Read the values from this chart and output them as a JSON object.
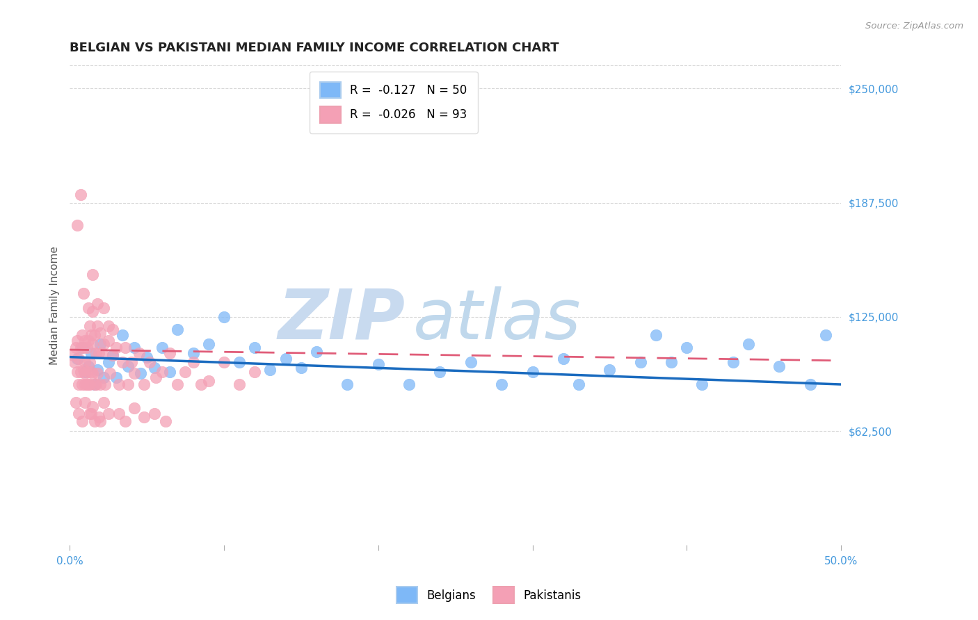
{
  "title": "BELGIAN VS PAKISTANI MEDIAN FAMILY INCOME CORRELATION CHART",
  "source_text": "Source: ZipAtlas.com",
  "ylabel": "Median Family Income",
  "xlim": [
    0.0,
    0.5
  ],
  "ylim": [
    0,
    262500
  ],
  "xticks": [
    0.0,
    0.1,
    0.2,
    0.3,
    0.4,
    0.5
  ],
  "xticklabels": [
    "0.0%",
    "",
    "",
    "",
    "",
    "50.0%"
  ],
  "yticks": [
    0,
    62500,
    125000,
    187500,
    250000
  ],
  "yticklabels": [
    "",
    "$62,500",
    "$125,000",
    "$187,500",
    "$250,000"
  ],
  "belgian_color": "#7eb8f7",
  "pakistani_color": "#f4a0b5",
  "belgian_line_color": "#1a6bbf",
  "pakistani_line_color": "#e05c78",
  "grid_color": "#cccccc",
  "background_color": "#ffffff",
  "watermark_zip": "ZIP",
  "watermark_atlas": "atlas",
  "watermark_color_zip": "#c8daef",
  "watermark_color_atlas": "#c0d8ec",
  "legend_R1": "R =  -0.127",
  "legend_N1": "N = 50",
  "legend_R2": "R =  -0.026",
  "legend_N2": "N = 93",
  "belgian_label": "Belgians",
  "pakistani_label": "Pakistanis",
  "title_fontsize": 13,
  "axis_label_fontsize": 11,
  "tick_fontsize": 11,
  "legend_fontsize": 12,
  "belgian_line_x0": 0.0,
  "belgian_line_y0": 103000,
  "belgian_line_x1": 0.5,
  "belgian_line_y1": 88000,
  "pakistani_line_x0": 0.0,
  "pakistani_line_y0": 107000,
  "pakistani_line_x1": 0.5,
  "pakistani_line_y1": 101000,
  "belgian_points_x": [
    0.005,
    0.008,
    0.01,
    0.012,
    0.014,
    0.016,
    0.018,
    0.02,
    0.022,
    0.025,
    0.028,
    0.03,
    0.034,
    0.038,
    0.042,
    0.046,
    0.05,
    0.055,
    0.06,
    0.065,
    0.07,
    0.08,
    0.09,
    0.1,
    0.11,
    0.12,
    0.13,
    0.14,
    0.15,
    0.16,
    0.18,
    0.2,
    0.22,
    0.24,
    0.26,
    0.28,
    0.3,
    0.32,
    0.33,
    0.35,
    0.37,
    0.38,
    0.39,
    0.4,
    0.41,
    0.43,
    0.44,
    0.46,
    0.48,
    0.49
  ],
  "belgian_points_y": [
    102000,
    108000,
    95000,
    98000,
    105000,
    88000,
    96000,
    110000,
    92000,
    100000,
    104000,
    92000,
    115000,
    98000,
    108000,
    94000,
    103000,
    97000,
    108000,
    95000,
    118000,
    105000,
    110000,
    125000,
    100000,
    108000,
    96000,
    102000,
    97000,
    106000,
    88000,
    99000,
    88000,
    95000,
    100000,
    88000,
    95000,
    102000,
    88000,
    96000,
    100000,
    115000,
    100000,
    108000,
    88000,
    100000,
    110000,
    98000,
    88000,
    115000
  ],
  "pakistani_points_x": [
    0.002,
    0.003,
    0.004,
    0.005,
    0.005,
    0.006,
    0.006,
    0.007,
    0.007,
    0.008,
    0.008,
    0.009,
    0.009,
    0.01,
    0.01,
    0.01,
    0.01,
    0.011,
    0.011,
    0.012,
    0.012,
    0.013,
    0.013,
    0.013,
    0.014,
    0.014,
    0.015,
    0.015,
    0.015,
    0.016,
    0.016,
    0.017,
    0.017,
    0.018,
    0.018,
    0.019,
    0.02,
    0.02,
    0.021,
    0.022,
    0.023,
    0.025,
    0.026,
    0.028,
    0.03,
    0.032,
    0.034,
    0.036,
    0.038,
    0.04,
    0.042,
    0.045,
    0.048,
    0.052,
    0.056,
    0.06,
    0.065,
    0.07,
    0.075,
    0.08,
    0.085,
    0.09,
    0.1,
    0.11,
    0.12,
    0.005,
    0.007,
    0.009,
    0.012,
    0.015,
    0.018,
    0.022,
    0.025,
    0.028,
    0.032,
    0.036,
    0.042,
    0.048,
    0.055,
    0.062,
    0.004,
    0.006,
    0.008,
    0.01,
    0.013,
    0.016,
    0.019,
    0.015,
    0.02,
    0.025,
    0.011,
    0.014,
    0.022
  ],
  "pakistani_points_y": [
    104000,
    100000,
    108000,
    95000,
    112000,
    102000,
    88000,
    108000,
    95000,
    115000,
    88000,
    108000,
    96000,
    112000,
    100000,
    94000,
    88000,
    108000,
    95000,
    112000,
    88000,
    120000,
    100000,
    88000,
    115000,
    95000,
    128000,
    110000,
    94000,
    115000,
    88000,
    105000,
    88000,
    120000,
    94000,
    105000,
    116000,
    88000,
    105000,
    110000,
    88000,
    112000,
    94000,
    104000,
    108000,
    88000,
    100000,
    108000,
    88000,
    100000,
    94000,
    105000,
    88000,
    100000,
    92000,
    95000,
    105000,
    88000,
    95000,
    100000,
    88000,
    90000,
    100000,
    88000,
    95000,
    175000,
    192000,
    138000,
    130000,
    148000,
    132000,
    130000,
    120000,
    118000,
    72000,
    68000,
    75000,
    70000,
    72000,
    68000,
    78000,
    72000,
    68000,
    78000,
    72000,
    68000,
    70000,
    76000,
    68000,
    72000,
    88000,
    72000,
    78000
  ]
}
